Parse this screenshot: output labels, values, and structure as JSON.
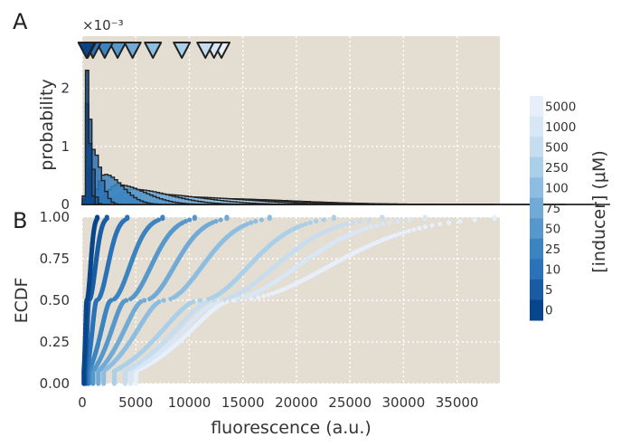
{
  "chart_data": [
    {
      "panel": "A",
      "type": "histogram",
      "ylabel": "probability",
      "yscale_label": "×10⁻³",
      "xlim": [
        0,
        39000
      ],
      "ylim": [
        0,
        0.0029
      ],
      "yticks": [
        0,
        1,
        2
      ],
      "grid": true,
      "markers": "triangles marking mean fluorescence per inducer concentration",
      "series": [
        {
          "inducer": "0",
          "color": "#08468c",
          "mean": 400,
          "peak": 0.00235,
          "width": 150
        },
        {
          "inducer": "5",
          "color": "#1a5ca4",
          "mean": 500,
          "peak": 0.00185,
          "width": 200
        },
        {
          "inducer": "10",
          "color": "#2b72b8",
          "mean": 1000,
          "peak": 0.00095,
          "width": 400
        },
        {
          "inducer": "25",
          "color": "#3b84c0",
          "mean": 2100,
          "peak": 0.00052,
          "width": 900
        },
        {
          "inducer": "50",
          "color": "#5698cb",
          "mean": 3300,
          "peak": 0.00034,
          "width": 1400
        },
        {
          "inducer": "75",
          "color": "#72aad6",
          "mean": 4700,
          "peak": 0.00026,
          "width": 1900
        },
        {
          "inducer": "100",
          "color": "#8dbde0",
          "mean": 6600,
          "peak": 0.00018,
          "width": 2500
        },
        {
          "inducer": "250",
          "color": "#aacfe8",
          "mean": 9300,
          "peak": 0.00013,
          "width": 3200
        },
        {
          "inducer": "500",
          "color": "#c8dcef",
          "mean": 11500,
          "peak": 0.000105,
          "width": 3700
        },
        {
          "inducer": "1000",
          "color": "#d8e7f5",
          "mean": 12300,
          "peak": 0.0001,
          "width": 3900
        },
        {
          "inducer": "5000",
          "color": "#e7f0fa",
          "mean": 13000,
          "peak": 9e-05,
          "width": 4000
        }
      ]
    },
    {
      "panel": "B",
      "type": "scatter",
      "xlabel": "fluorescence (a.u.)",
      "ylabel": "ECDF",
      "xlim": [
        0,
        39000
      ],
      "ylim": [
        0,
        1
      ],
      "xticks": [
        0,
        5000,
        10000,
        15000,
        20000,
        25000,
        30000,
        35000
      ],
      "yticks": [
        "0.00",
        "0.25",
        "0.50",
        "0.75",
        "1.00"
      ],
      "grid": true,
      "series": [
        {
          "inducer": "0",
          "color": "#08468c",
          "start": 150,
          "median": 420,
          "end": 1400
        },
        {
          "inducer": "5",
          "color": "#1a5ca4",
          "start": 250,
          "median": 620,
          "end": 2300
        },
        {
          "inducer": "10",
          "color": "#2b72b8",
          "start": 400,
          "median": 1350,
          "end": 4200
        },
        {
          "inducer": "25",
          "color": "#3b84c0",
          "start": 600,
          "median": 2700,
          "end": 7500
        },
        {
          "inducer": "50",
          "color": "#5698cb",
          "start": 1000,
          "median": 4100,
          "end": 10500
        },
        {
          "inducer": "75",
          "color": "#72aad6",
          "start": 1500,
          "median": 5800,
          "end": 13500
        },
        {
          "inducer": "100",
          "color": "#8dbde0",
          "start": 2000,
          "median": 7600,
          "end": 17500
        },
        {
          "inducer": "250",
          "color": "#aacfe8",
          "start": 3000,
          "median": 11000,
          "end": 23500
        },
        {
          "inducer": "500",
          "color": "#c8dcef",
          "start": 4000,
          "median": 12300,
          "end": 28000
        },
        {
          "inducer": "1000",
          "color": "#d8e7f5",
          "start": 4500,
          "median": 13300,
          "end": 32000
        },
        {
          "inducer": "5000",
          "color": "#e7f0fa",
          "start": 5000,
          "median": 14200,
          "end": 38500
        }
      ]
    }
  ],
  "panels": {
    "a_label": "A",
    "b_label": "B"
  },
  "colorbar": {
    "label": "[inducer] (μM)",
    "ticks": [
      "5000",
      "1000",
      "500",
      "250",
      "100",
      "75",
      "50",
      "25",
      "10",
      "5",
      "0"
    ],
    "colors": [
      "#e7f0fa",
      "#d8e7f5",
      "#c8dcef",
      "#aacfe8",
      "#8dbde0",
      "#72aad6",
      "#5698cb",
      "#3b84c0",
      "#2b72b8",
      "#1a5ca4",
      "#08468c"
    ]
  },
  "style": {
    "plot_bg": "#e3ddd2",
    "grid_color": "#ffffff",
    "edge_color": "#222222"
  }
}
